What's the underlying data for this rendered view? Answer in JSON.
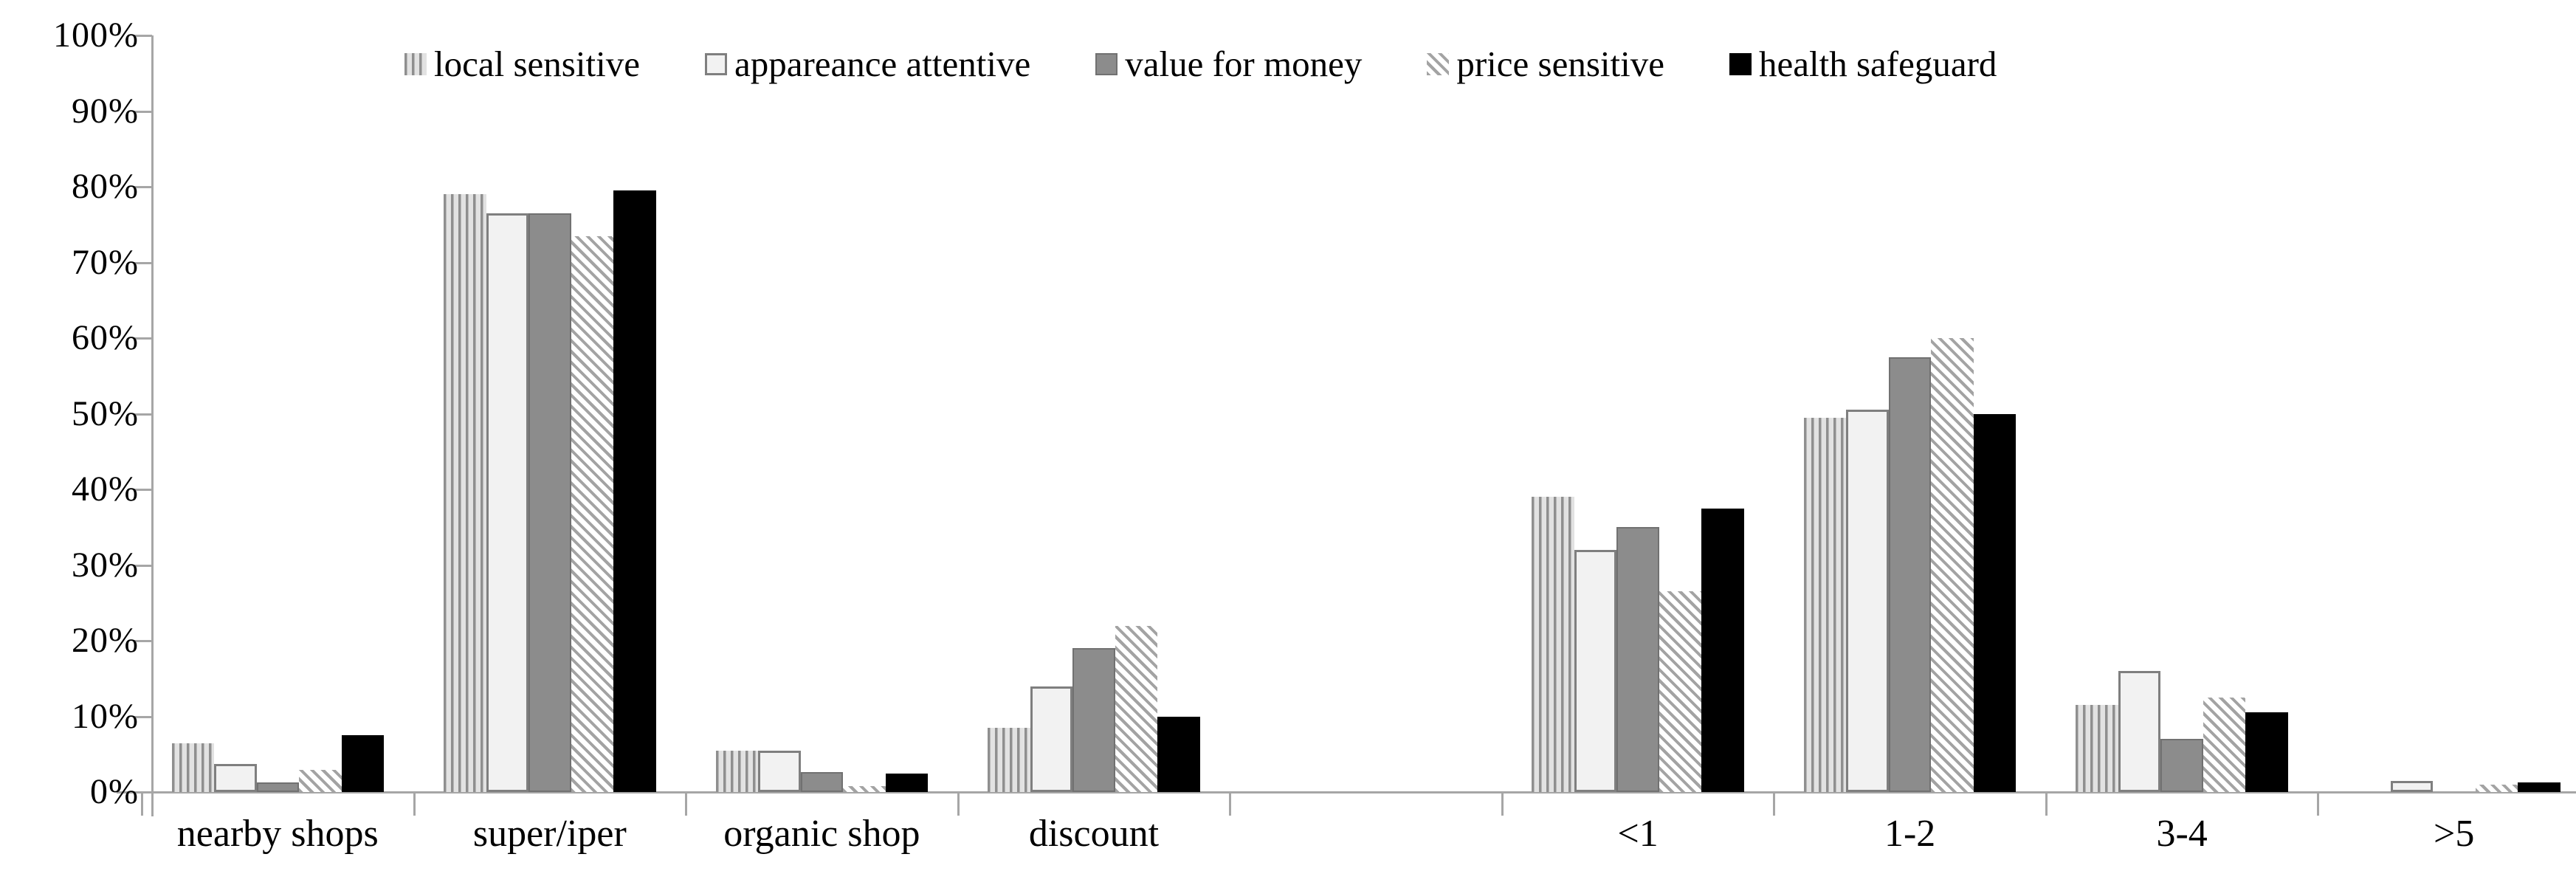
{
  "chart_data": {
    "type": "bar",
    "title": "",
    "xlabel": "",
    "ylabel": "",
    "categories": [
      "nearby shops",
      "super/iper",
      "organic shop",
      "discount",
      "",
      "<1",
      "1-2",
      "3-4",
      ">5"
    ],
    "series": [
      {
        "name": "local sensitive",
        "swatch": "vertical-stripes",
        "values": [
          6.4,
          79,
          5.5,
          8.5,
          null,
          39,
          49.5,
          11.5,
          0
        ]
      },
      {
        "name": "appareance attentive",
        "swatch": "light-outline",
        "values": [
          3.7,
          76.5,
          5.5,
          14,
          null,
          32,
          50.5,
          16,
          1.5
        ]
      },
      {
        "name": "value for money",
        "swatch": "solid-gray",
        "values": [
          1.3,
          76.5,
          2.6,
          19,
          null,
          35,
          57.5,
          7,
          0
        ]
      },
      {
        "name": "price sensitive",
        "swatch": "diagonal-stripes",
        "values": [
          2.9,
          73.5,
          0.8,
          22,
          null,
          26.5,
          60,
          12.5,
          1
        ]
      },
      {
        "name": "health safeguard",
        "swatch": "solid-black",
        "values": [
          7.5,
          79.5,
          2.4,
          10,
          null,
          37.5,
          50,
          10.5,
          1.3
        ]
      }
    ],
    "ylim": [
      0,
      100
    ],
    "ytick_step": 10,
    "yticks": [
      "0%",
      "10%",
      "20%",
      "30%",
      "40%",
      "50%",
      "60%",
      "70%",
      "80%",
      "90%",
      "100%"
    ],
    "legend_position": "top",
    "grid": false
  },
  "colors": {
    "background": "#ffffff",
    "axis": "#a6a6a6",
    "text": "#000000",
    "stripe_fg": "#8f8f8f",
    "stripe_bg": "#e2e2e2",
    "light_fill": "#f2f2f2",
    "light_border": "#7f7f7f",
    "solid_gray": "#8c8c8c",
    "solid_gray_border": "#717171",
    "diagonal_fg": "#a3a3a3",
    "diagonal_bg": "#ffffff",
    "black": "#000000"
  },
  "geometry_note": "y axis 0-100% in 10% steps, no gridlines, legend row across the top, empty category slot between discount and <1"
}
